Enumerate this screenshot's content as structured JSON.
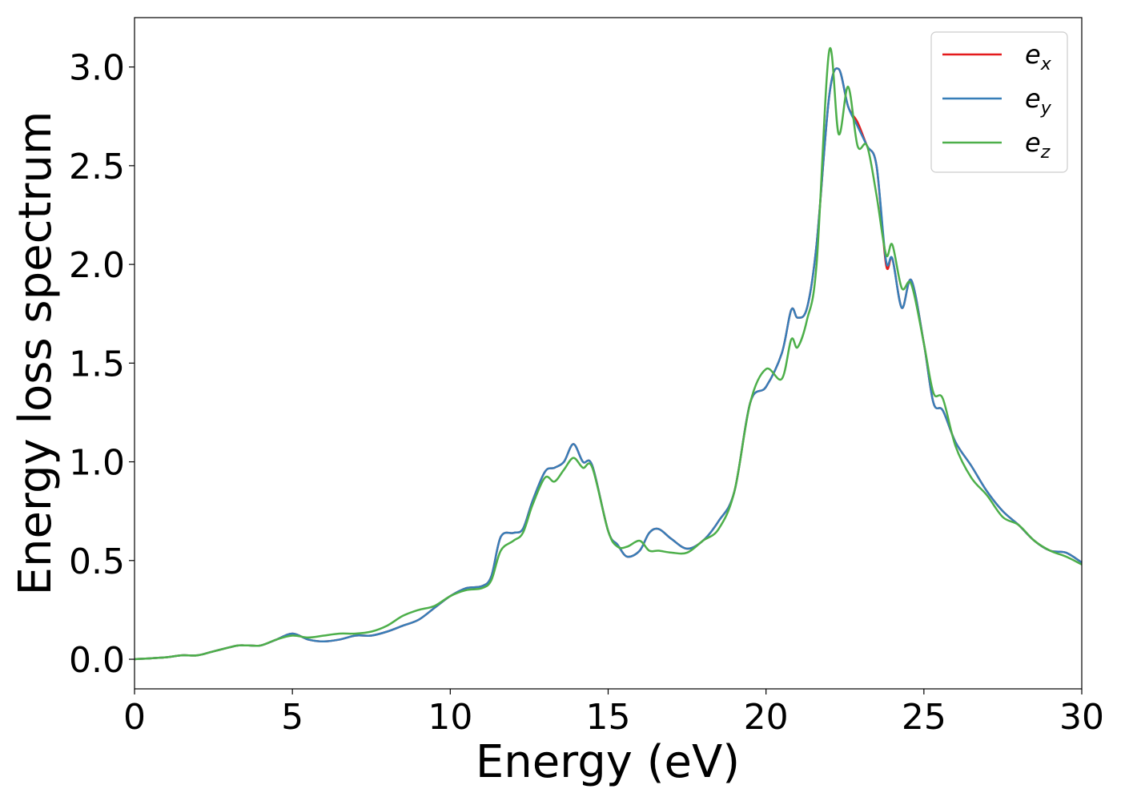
{
  "chart_data": {
    "type": "line",
    "title": "",
    "xlabel": "Energy (eV)",
    "ylabel": "Energy loss spectrum",
    "xlim": [
      0,
      30
    ],
    "ylim": [
      -0.15,
      3.25
    ],
    "xticks": [
      0,
      5,
      10,
      15,
      20,
      25,
      30
    ],
    "xtick_labels": [
      "0",
      "5",
      "10",
      "15",
      "20",
      "25",
      "30"
    ],
    "yticks": [
      0.0,
      0.5,
      1.0,
      1.5,
      2.0,
      2.5,
      3.0
    ],
    "ytick_labels": [
      "0.0",
      "0.5",
      "1.0",
      "1.5",
      "2.0",
      "2.5",
      "3.0"
    ],
    "grid": false,
    "legend_position": "top-right",
    "series": [
      {
        "name": "e_x",
        "base": "e",
        "sub": "x",
        "color": "#e41a1c",
        "x": [
          0,
          1,
          1.5,
          2,
          2.5,
          3,
          3.3,
          3.6,
          4,
          4.5,
          5,
          5.5,
          6,
          6.5,
          7,
          7.5,
          8,
          8.5,
          9,
          9.5,
          10,
          10.5,
          11,
          11.3,
          11.6,
          12,
          12.3,
          12.6,
          13,
          13.3,
          13.6,
          13.9,
          14.2,
          14.5,
          15,
          15.3,
          15.6,
          16,
          16.3,
          16.6,
          17,
          17.5,
          18,
          18.5,
          19,
          19.5,
          20,
          20.5,
          20.8,
          21,
          21.3,
          21.6,
          22,
          22.3,
          22.6,
          22.9,
          23.2,
          23.5,
          23.8,
          24,
          24.3,
          24.6,
          25,
          25.3,
          25.6,
          26,
          26.5,
          27,
          27.5,
          28,
          28.5,
          29,
          29.5,
          30
        ],
        "y": [
          0.0,
          0.01,
          0.02,
          0.02,
          0.04,
          0.06,
          0.07,
          0.07,
          0.07,
          0.1,
          0.13,
          0.1,
          0.09,
          0.1,
          0.12,
          0.12,
          0.14,
          0.17,
          0.2,
          0.26,
          0.32,
          0.36,
          0.37,
          0.42,
          0.62,
          0.64,
          0.66,
          0.8,
          0.95,
          0.97,
          1.0,
          1.09,
          1.0,
          0.98,
          0.65,
          0.58,
          0.52,
          0.55,
          0.64,
          0.66,
          0.61,
          0.56,
          0.6,
          0.7,
          0.85,
          1.3,
          1.38,
          1.55,
          1.77,
          1.73,
          1.78,
          2.1,
          2.85,
          2.99,
          2.8,
          2.72,
          2.6,
          2.5,
          2.0,
          2.03,
          1.78,
          1.92,
          1.6,
          1.3,
          1.26,
          1.1,
          0.98,
          0.85,
          0.75,
          0.68,
          0.6,
          0.55,
          0.54,
          0.49
        ]
      },
      {
        "name": "e_y",
        "base": "e",
        "sub": "y",
        "color": "#377eb8",
        "x": [
          0,
          1,
          1.5,
          2,
          2.5,
          3,
          3.3,
          3.6,
          4,
          4.5,
          5,
          5.5,
          6,
          6.5,
          7,
          7.5,
          8,
          8.5,
          9,
          9.5,
          10,
          10.5,
          11,
          11.3,
          11.6,
          12,
          12.3,
          12.6,
          13,
          13.3,
          13.6,
          13.9,
          14.2,
          14.5,
          15,
          15.3,
          15.6,
          16,
          16.3,
          16.6,
          17,
          17.5,
          18,
          18.5,
          19,
          19.5,
          20,
          20.5,
          20.8,
          21,
          21.3,
          21.6,
          22,
          22.3,
          22.6,
          22.9,
          23.2,
          23.5,
          23.8,
          24,
          24.3,
          24.6,
          25,
          25.3,
          25.6,
          26,
          26.5,
          27,
          27.5,
          28,
          28.5,
          29,
          29.5,
          30
        ],
        "y": [
          0.0,
          0.01,
          0.02,
          0.02,
          0.04,
          0.06,
          0.07,
          0.07,
          0.07,
          0.1,
          0.13,
          0.1,
          0.09,
          0.1,
          0.12,
          0.12,
          0.14,
          0.17,
          0.2,
          0.26,
          0.32,
          0.36,
          0.37,
          0.42,
          0.62,
          0.64,
          0.66,
          0.8,
          0.95,
          0.97,
          1.0,
          1.09,
          1.0,
          0.98,
          0.65,
          0.58,
          0.52,
          0.55,
          0.64,
          0.66,
          0.61,
          0.56,
          0.6,
          0.7,
          0.85,
          1.3,
          1.38,
          1.55,
          1.77,
          1.73,
          1.78,
          2.1,
          2.85,
          2.99,
          2.8,
          2.7,
          2.6,
          2.5,
          2.02,
          2.03,
          1.78,
          1.92,
          1.6,
          1.3,
          1.26,
          1.1,
          0.98,
          0.85,
          0.75,
          0.68,
          0.6,
          0.55,
          0.54,
          0.49
        ]
      },
      {
        "name": "e_z",
        "base": "e",
        "sub": "z",
        "color": "#4daf4a",
        "x": [
          0,
          1,
          1.5,
          2,
          2.5,
          3,
          3.3,
          3.6,
          4,
          4.5,
          5,
          5.5,
          6,
          6.5,
          7,
          7.5,
          8,
          8.5,
          9,
          9.5,
          10,
          10.5,
          11,
          11.3,
          11.6,
          12,
          12.3,
          12.6,
          13,
          13.3,
          13.6,
          13.9,
          14.2,
          14.5,
          15,
          15.3,
          15.6,
          16,
          16.3,
          16.6,
          17,
          17.5,
          18,
          18.5,
          19,
          19.5,
          20,
          20.5,
          20.8,
          21,
          21.3,
          21.6,
          22,
          22.3,
          22.6,
          22.9,
          23.2,
          23.5,
          23.8,
          24,
          24.3,
          24.6,
          25,
          25.3,
          25.6,
          26,
          26.5,
          27,
          27.5,
          28,
          28.5,
          29,
          29.5,
          30
        ],
        "y": [
          0.0,
          0.01,
          0.02,
          0.02,
          0.04,
          0.06,
          0.07,
          0.07,
          0.07,
          0.1,
          0.12,
          0.11,
          0.12,
          0.13,
          0.13,
          0.14,
          0.17,
          0.22,
          0.25,
          0.27,
          0.32,
          0.35,
          0.36,
          0.4,
          0.55,
          0.6,
          0.64,
          0.78,
          0.92,
          0.9,
          0.96,
          1.02,
          0.97,
          0.97,
          0.65,
          0.57,
          0.57,
          0.6,
          0.55,
          0.55,
          0.54,
          0.54,
          0.6,
          0.66,
          0.85,
          1.3,
          1.47,
          1.42,
          1.62,
          1.58,
          1.72,
          2.0,
          3.08,
          2.66,
          2.9,
          2.6,
          2.6,
          2.35,
          2.05,
          2.1,
          1.88,
          1.9,
          1.6,
          1.35,
          1.32,
          1.08,
          0.92,
          0.83,
          0.72,
          0.68,
          0.6,
          0.55,
          0.52,
          0.48
        ]
      }
    ]
  }
}
